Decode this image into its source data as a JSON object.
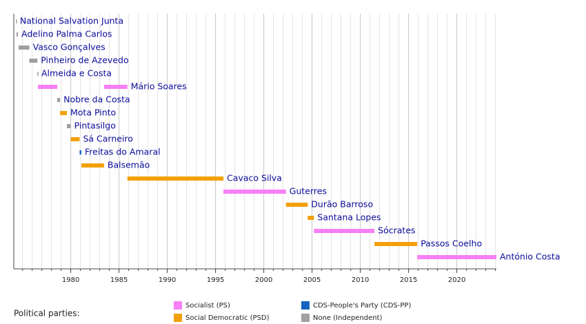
{
  "chart_data": {
    "type": "timeline",
    "categories": [
      "National Salvation Junta",
      "Adelino Palma Carlos",
      "Vasco Gonçalves",
      "Pinheiro de Azevedo",
      "Almeida e Costa",
      "Mário Soares",
      "Nobre da Costa",
      "Mota Pinto",
      "Pintasilgo",
      "Sá Carneiro",
      "Freitas do Amaral",
      "Balsemão",
      "Cavaco Silva",
      "Guterres",
      "Durão Barroso",
      "Santana Lopes",
      "Sócrates",
      "Passos Coelho",
      "António Costa"
    ],
    "series": [
      {
        "name": "Socialist (PS)",
        "color": "#f77ff7",
        "rows": [
          5,
          5,
          13,
          16,
          18
        ],
        "start": [
          1976.6,
          1983.45,
          1995.82,
          2005.2,
          2015.9
        ],
        "end": [
          1978.6,
          1985.87,
          2002.3,
          2011.47,
          2024.1
        ]
      },
      {
        "name": "Social Democratic (PSD)",
        "color": "#f2a00c",
        "rows": [
          7,
          9,
          11,
          12,
          14,
          15,
          17
        ],
        "start": [
          1978.9,
          1980.0,
          1981.1,
          1985.87,
          2002.3,
          2004.55,
          2011.47
        ],
        "end": [
          1979.6,
          1980.92,
          1983.45,
          1995.82,
          2004.55,
          2005.2,
          2015.9
        ]
      },
      {
        "name": "CDS-People's Party (CDS-PP)",
        "color": "#1565c0",
        "rows": [
          10
        ],
        "start": [
          1980.92
        ],
        "end": [
          1981.1
        ]
      },
      {
        "name": "None (Independent)",
        "color": "#a0a0a0",
        "rows": [
          0,
          1,
          2,
          3,
          4,
          6,
          8
        ],
        "start": [
          1974.32,
          1974.38,
          1974.6,
          1975.7,
          1976.55,
          1978.6,
          1979.6
        ],
        "end": [
          1974.38,
          1974.53,
          1975.72,
          1976.55,
          1976.6,
          1978.9,
          1980.0
        ]
      }
    ],
    "legend_title": "Political parties:",
    "xlim": [
      1974.1,
      2024.1
    ],
    "xticks": [
      1980,
      1985,
      1990,
      1995,
      2000,
      2005,
      2010,
      2015,
      2020
    ],
    "minor_xticks": [
      1975,
      1976,
      1977,
      1978,
      1979,
      1980,
      1981,
      1982,
      1983,
      1984,
      1985,
      1986,
      1987,
      1988,
      1989,
      1990,
      1991,
      1992,
      1993,
      1994,
      1995,
      1996,
      1997,
      1998,
      1999,
      2000,
      2001,
      2002,
      2003,
      2004,
      2005,
      2006,
      2007,
      2008,
      2009,
      2010,
      2011,
      2012,
      2013,
      2014,
      2015,
      2016,
      2017,
      2018,
      2019,
      2020,
      2021,
      2022,
      2023,
      2024
    ],
    "grid": true
  }
}
